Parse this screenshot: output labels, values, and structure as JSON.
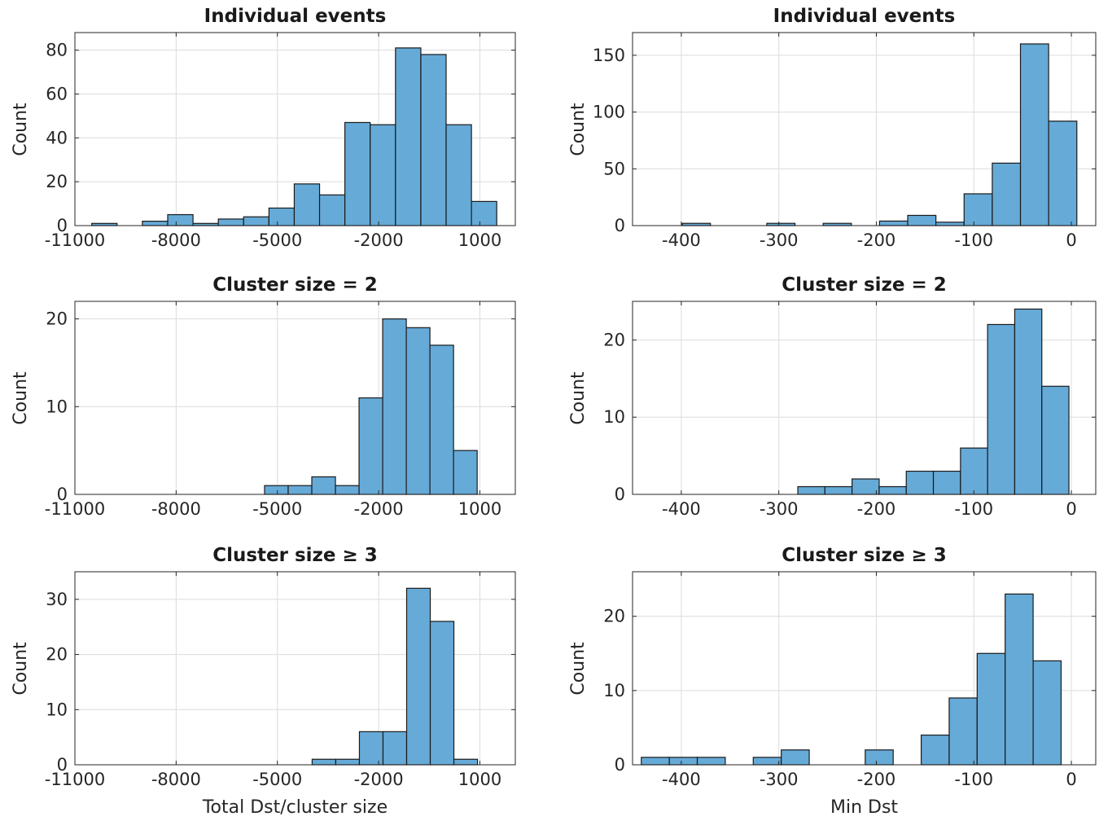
{
  "figure_title": "",
  "colors": {
    "bar_fill": "#66aad7",
    "bar_edge": "#1a1a1a",
    "grid": "#dcdcdc",
    "axis": "#262626",
    "text": "#262626",
    "title_text": "#1a1a1a",
    "background": "#ffffff"
  },
  "chart_data": [
    {
      "type": "bar",
      "title": "Individual events",
      "ylabel": "Count",
      "xlabel": "",
      "xlim": [
        -11000,
        2050
      ],
      "ylim": [
        0,
        88
      ],
      "xticks": [
        -11000,
        -8000,
        -5000,
        -2000,
        1000
      ],
      "yticks": [
        0,
        20,
        40,
        60,
        80
      ],
      "grid": true,
      "bin_start": -10500,
      "bin_width": 750,
      "counts": [
        1,
        0,
        2,
        5,
        1,
        3,
        4,
        8,
        19,
        14,
        47,
        46,
        81,
        78,
        46,
        11
      ]
    },
    {
      "type": "bar",
      "title": "Individual events",
      "ylabel": "Count",
      "xlabel": "",
      "xlim": [
        -450,
        25
      ],
      "ylim": [
        0,
        170
      ],
      "xticks": [
        -400,
        -300,
        -200,
        -100,
        0
      ],
      "yticks": [
        0,
        50,
        100,
        150
      ],
      "grid": true,
      "bin_start": -399,
      "bin_width": 28.9,
      "counts": [
        2,
        0,
        0,
        2,
        0,
        2,
        0,
        4,
        9,
        3,
        28,
        55,
        160,
        92
      ]
    },
    {
      "type": "bar",
      "title": "Cluster size = 2",
      "ylabel": "Count",
      "xlabel": "",
      "xlim": [
        -11000,
        2050
      ],
      "ylim": [
        0,
        22
      ],
      "xticks": [
        -11000,
        -8000,
        -5000,
        -2000,
        1000
      ],
      "yticks": [
        0,
        10,
        20
      ],
      "grid": true,
      "bin_start": -5380,
      "bin_width": 700,
      "counts": [
        1,
        1,
        2,
        1,
        11,
        20,
        19,
        17,
        5
      ]
    },
    {
      "type": "bar",
      "title": "Cluster size = 2",
      "ylabel": "Count",
      "xlabel": "",
      "xlim": [
        -450,
        25
      ],
      "ylim": [
        0,
        25
      ],
      "xticks": [
        -400,
        -300,
        -200,
        -100,
        0
      ],
      "yticks": [
        0,
        10,
        20
      ],
      "grid": true,
      "bin_start": -280.5,
      "bin_width": 27.8,
      "counts": [
        1,
        1,
        2,
        1,
        3,
        3,
        6,
        22,
        24,
        14
      ]
    },
    {
      "type": "bar",
      "title": "Cluster size ≥ 3",
      "ylabel": "Count",
      "xlabel": "Total Dst/cluster size",
      "xlim": [
        -11000,
        2050
      ],
      "ylim": [
        0,
        35
      ],
      "xticks": [
        -11000,
        -8000,
        -5000,
        -2000,
        1000
      ],
      "yticks": [
        0,
        10,
        20,
        30
      ],
      "grid": true,
      "bin_start": -3970,
      "bin_width": 700,
      "counts": [
        1,
        1,
        6,
        6,
        32,
        26,
        1
      ]
    },
    {
      "type": "bar",
      "title": "Cluster size ≥ 3",
      "ylabel": "Count",
      "xlabel": "Min Dst",
      "xlim": [
        -450,
        25
      ],
      "ylim": [
        0,
        26
      ],
      "xticks": [
        -400,
        -300,
        -200,
        -100,
        0
      ],
      "yticks": [
        0,
        10,
        20
      ],
      "grid": true,
      "bin_start": -441,
      "bin_width": 28.7,
      "counts": [
        1,
        1,
        1,
        0,
        1,
        2,
        0,
        0,
        2,
        0,
        4,
        9,
        15,
        23,
        14
      ]
    }
  ]
}
